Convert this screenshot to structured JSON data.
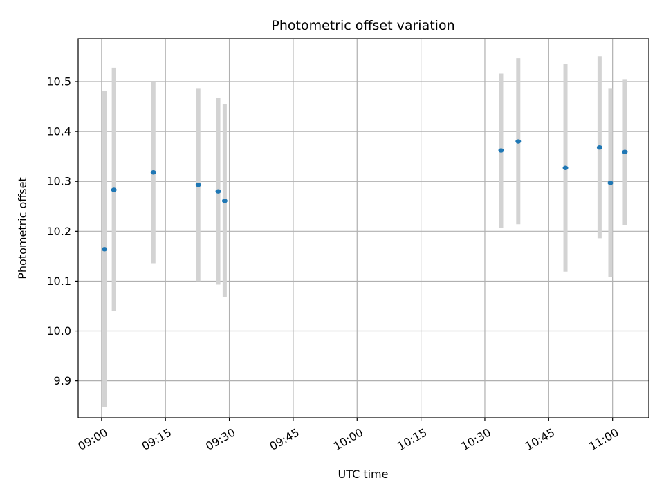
{
  "chart_data": {
    "type": "scatter",
    "title": "Photometric offset variation",
    "xlabel": "UTC time",
    "ylabel": "Photometric offset",
    "x_ticks": [
      "09:00",
      "09:15",
      "09:30",
      "09:45",
      "10:00",
      "10:15",
      "10:30",
      "10:45",
      "11:00"
    ],
    "y_ticks": [
      "9.9",
      "10.0",
      "10.1",
      "10.2",
      "10.3",
      "10.4",
      "10.5"
    ],
    "xlim": [
      "08:54:30",
      "11:08:30"
    ],
    "ylim": [
      9.826,
      10.586
    ],
    "grid": true,
    "marker_color": "#1f77b4",
    "errorbar_color": "#d3d3d3",
    "points": [
      {
        "time": "09:00:41",
        "y": 10.164,
        "ylow": 9.848,
        "yhigh": 10.482
      },
      {
        "time": "09:02:53",
        "y": 10.283,
        "ylow": 10.04,
        "yhigh": 10.528
      },
      {
        "time": "09:12:10",
        "y": 10.318,
        "ylow": 10.136,
        "yhigh": 10.499
      },
      {
        "time": "09:22:43",
        "y": 10.293,
        "ylow": 10.1,
        "yhigh": 10.487
      },
      {
        "time": "09:27:24",
        "y": 10.28,
        "ylow": 10.093,
        "yhigh": 10.467
      },
      {
        "time": "09:28:55",
        "y": 10.261,
        "ylow": 10.068,
        "yhigh": 10.455
      },
      {
        "time": "10:33:49",
        "y": 10.362,
        "ylow": 10.206,
        "yhigh": 10.516
      },
      {
        "time": "10:37:51",
        "y": 10.38,
        "ylow": 10.214,
        "yhigh": 10.547
      },
      {
        "time": "10:48:56",
        "y": 10.327,
        "ylow": 10.119,
        "yhigh": 10.535
      },
      {
        "time": "10:56:57",
        "y": 10.368,
        "ylow": 10.186,
        "yhigh": 10.551
      },
      {
        "time": "10:59:29",
        "y": 10.297,
        "ylow": 10.108,
        "yhigh": 10.487
      },
      {
        "time": "11:02:53",
        "y": 10.359,
        "ylow": 10.213,
        "yhigh": 10.505
      }
    ]
  }
}
